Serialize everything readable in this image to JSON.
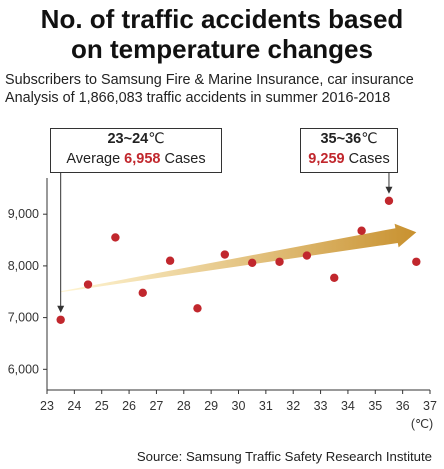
{
  "title_lines": [
    "No. of traffic accidents based",
    "on temperature changes"
  ],
  "subtitle_lines": [
    "Subscribers to Samsung Fire & Marine Insurance, car insurance",
    "Analysis of 1,866,083 traffic accidents in summer 2016-2018"
  ],
  "callouts": [
    {
      "range": "23~24",
      "unit": "℃",
      "prefix": "Average ",
      "value": "6,958",
      "suffix": " Cases"
    },
    {
      "range": "35~36",
      "unit": "℃",
      "prefix": "",
      "value": "9,259",
      "suffix": " Cases"
    }
  ],
  "source": "Source: Samsung Traffic Safety Research Institute",
  "colors": {
    "point": "#c1272d",
    "arrow_start": "#fff1c4",
    "arrow_end": "#c9902e",
    "callout_value": "#c1272d"
  },
  "chart_data": {
    "type": "scatter",
    "title": "No. of traffic accidents based on temperature changes",
    "x_unit_label": "(℃)",
    "xlim": [
      23,
      37
    ],
    "ylim": [
      5600,
      9700
    ],
    "x_ticks": [
      23,
      24,
      25,
      26,
      27,
      28,
      29,
      30,
      31,
      32,
      33,
      34,
      35,
      36,
      37
    ],
    "y_ticks": [
      6000,
      7000,
      8000,
      9000
    ],
    "y_tick_labels": [
      "6,000",
      "7,000",
      "8,000",
      "9,000"
    ],
    "points": [
      {
        "x": 23.5,
        "y": 6958
      },
      {
        "x": 24.5,
        "y": 7640
      },
      {
        "x": 25.5,
        "y": 8550
      },
      {
        "x": 26.5,
        "y": 7480
      },
      {
        "x": 27.5,
        "y": 8100
      },
      {
        "x": 28.5,
        "y": 7180
      },
      {
        "x": 29.5,
        "y": 8220
      },
      {
        "x": 30.5,
        "y": 8060
      },
      {
        "x": 31.5,
        "y": 8080
      },
      {
        "x": 32.5,
        "y": 8200
      },
      {
        "x": 33.5,
        "y": 7770
      },
      {
        "x": 34.5,
        "y": 8680
      },
      {
        "x": 35.5,
        "y": 9259
      },
      {
        "x": 36.5,
        "y": 8080
      }
    ],
    "trend": {
      "from": {
        "x": 23.5,
        "y": 7500
      },
      "to": {
        "x": 36.5,
        "y": 8650
      }
    },
    "grid": false,
    "legend": "none"
  }
}
